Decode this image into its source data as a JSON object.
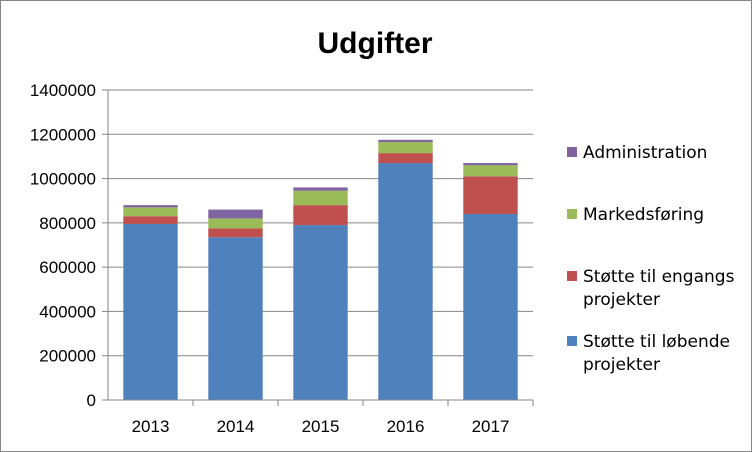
{
  "chart_data": {
    "type": "bar",
    "stacked": true,
    "title": "Udgifter",
    "xlabel": "",
    "ylabel": "",
    "ylim": [
      0,
      1400000
    ],
    "yticks": [
      "0",
      "200000",
      "400000",
      "600000",
      "800000",
      "1000000",
      "1200000",
      "1400000"
    ],
    "categories": [
      "2013",
      "2014",
      "2015",
      "2016",
      "2017"
    ],
    "series": [
      {
        "name": "Støtte til løbende projekter",
        "color": "#4F81BD",
        "values": [
          795000,
          735000,
          790000,
          1070000,
          840000
        ]
      },
      {
        "name": "Støtte til engangs projekter",
        "color": "#C0504D",
        "values": [
          35000,
          40000,
          90000,
          45000,
          170000
        ]
      },
      {
        "name": "Markedsføring",
        "color": "#9BBB59",
        "values": [
          40000,
          45000,
          65000,
          50000,
          50000
        ]
      },
      {
        "name": "Administration",
        "color": "#8064A2",
        "values": [
          10000,
          40000,
          15000,
          10000,
          10000
        ]
      }
    ],
    "legend_order": [
      3,
      2,
      1,
      0
    ],
    "legend": "right",
    "grid": true
  }
}
